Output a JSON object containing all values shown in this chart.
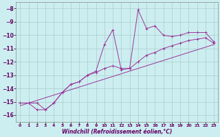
{
  "title": "",
  "xlabel": "Windchill (Refroidissement éolien,°C)",
  "ylabel": "",
  "bg_color": "#cceef0",
  "grid_color": "#aacccc",
  "line_color": "#993399",
  "xlim": [
    -0.5,
    23.5
  ],
  "ylim": [
    -16.5,
    -7.5
  ],
  "xticks": [
    0,
    1,
    2,
    3,
    4,
    5,
    6,
    7,
    8,
    9,
    10,
    11,
    12,
    13,
    14,
    15,
    16,
    17,
    18,
    19,
    20,
    21,
    22,
    23
  ],
  "yticks": [
    -8,
    -9,
    -10,
    -11,
    -12,
    -13,
    -14,
    -15,
    -16
  ],
  "line1_x": [
    0,
    1,
    2,
    3,
    4,
    5,
    6,
    7,
    8,
    9,
    10,
    11,
    12,
    13,
    14,
    15,
    16,
    17,
    18,
    19,
    20,
    21,
    22,
    23
  ],
  "line1_y": [
    -15.1,
    -15.1,
    -15.6,
    -15.6,
    -15.1,
    -14.3,
    -13.7,
    -13.5,
    -13.0,
    -12.7,
    -10.7,
    -9.6,
    -12.6,
    -12.5,
    -8.1,
    -9.5,
    -9.3,
    -10.0,
    -10.1,
    -10.0,
    -9.8,
    -9.8,
    -9.8,
    -10.5
  ],
  "line2_x": [
    0,
    1,
    2,
    3,
    4,
    5,
    6,
    7,
    8,
    9,
    10,
    11,
    12,
    13,
    14,
    15,
    16,
    17,
    18,
    19,
    20,
    21,
    22,
    23
  ],
  "line2_y": [
    -15.1,
    -15.1,
    -15.1,
    -15.6,
    -15.1,
    -14.3,
    -13.7,
    -13.5,
    -13.0,
    -12.8,
    -12.5,
    -12.3,
    -12.5,
    -12.5,
    -12.0,
    -11.5,
    -11.3,
    -11.0,
    -10.8,
    -10.6,
    -10.4,
    -10.3,
    -10.2,
    -10.6
  ],
  "line3_x": [
    0,
    23
  ],
  "line3_y": [
    -15.3,
    -10.7
  ]
}
